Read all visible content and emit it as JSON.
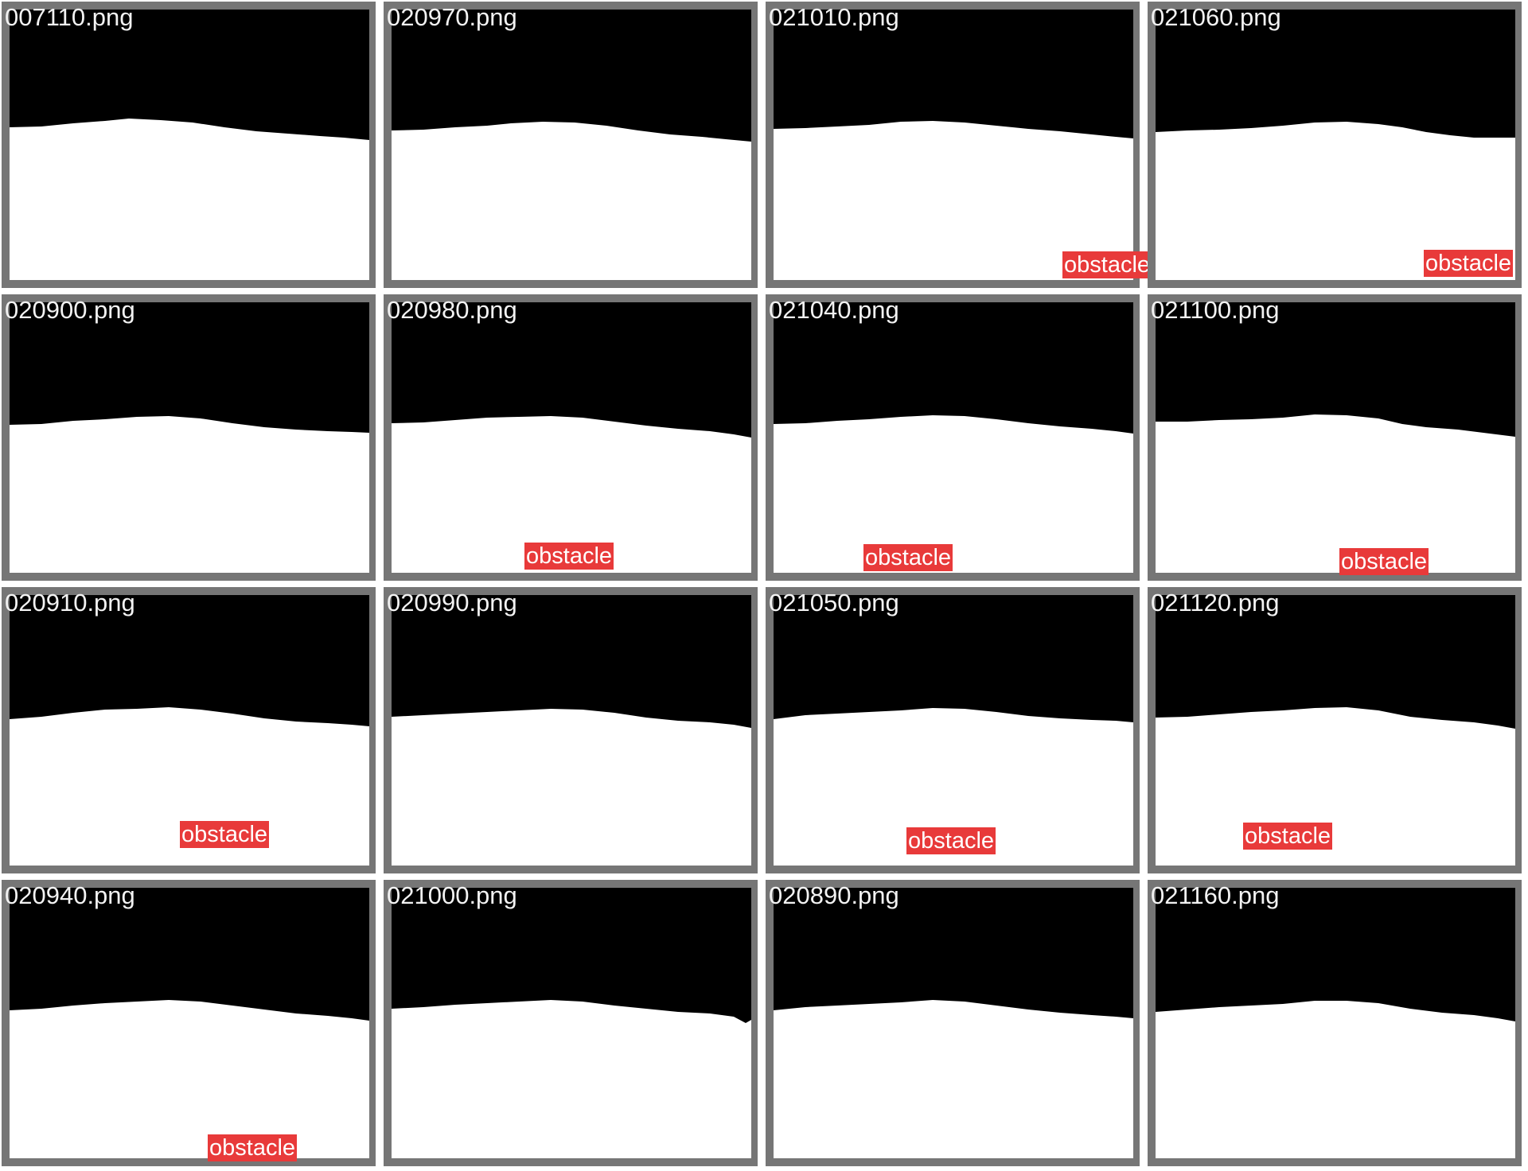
{
  "colors": {
    "frame": "#767676",
    "background": "#000000",
    "foreground": "#ffffff",
    "label_background": "#e83a3a",
    "label_text": "#ffffff",
    "filename_text": "#f2f2f2"
  },
  "tiles": [
    {
      "filename": "007110.png",
      "label": ""
    },
    {
      "filename": "020970.png",
      "label": ""
    },
    {
      "filename": "021010.png",
      "label": "obstacle"
    },
    {
      "filename": "021060.png",
      "label": "obstacle"
    },
    {
      "filename": "020900.png",
      "label": ""
    },
    {
      "filename": "020980.png",
      "label": "obstacle"
    },
    {
      "filename": "021040.png",
      "label": "obstacle"
    },
    {
      "filename": "021100.png",
      "label": "obstacle"
    },
    {
      "filename": "020910.png",
      "label": "obstacle"
    },
    {
      "filename": "020990.png",
      "label": ""
    },
    {
      "filename": "021050.png",
      "label": "obstacle"
    },
    {
      "filename": "021120.png",
      "label": "obstacle"
    },
    {
      "filename": "020940.png",
      "label": "obstacle"
    },
    {
      "filename": "021000.png",
      "label": ""
    },
    {
      "filename": "020890.png",
      "label": ""
    },
    {
      "filename": "021160.png",
      "label": ""
    }
  ]
}
